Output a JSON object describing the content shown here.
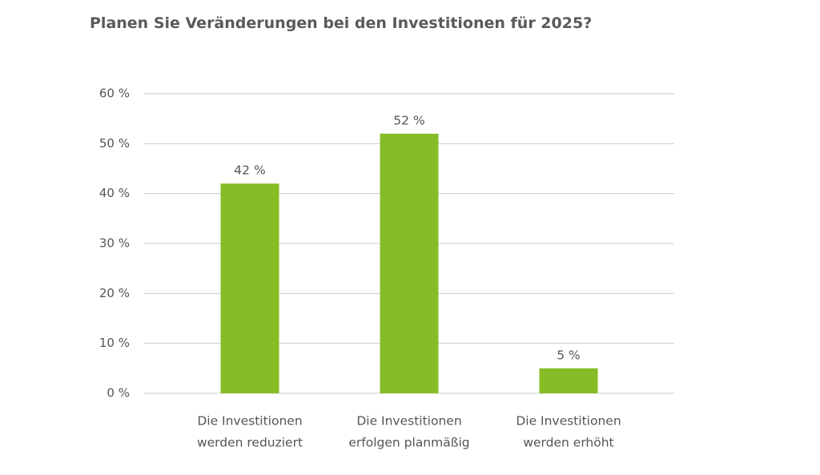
{
  "chart_data": {
    "type": "bar",
    "title": "Planen Sie Veränderungen bei den Investitionen für 2025?",
    "categories": [
      [
        "Die Investitionen",
        "werden reduziert"
      ],
      [
        "Die Investitionen",
        "erfolgen planmäßig"
      ],
      [
        "Die Investitionen",
        "werden erhöht"
      ]
    ],
    "values": [
      42,
      52,
      5
    ],
    "value_labels": [
      "42 %",
      "52 %",
      "5 %"
    ],
    "color": "#86bc25",
    "ylim": [
      0,
      60
    ],
    "yticks": [
      {
        "value": 0,
        "label": "0 %"
      },
      {
        "value": 10,
        "label": "10 %"
      },
      {
        "value": 20,
        "label": "20 %"
      },
      {
        "value": 30,
        "label": "30 %"
      },
      {
        "value": 40,
        "label": "40 %"
      },
      {
        "value": 50,
        "label": "50 %"
      },
      {
        "value": 60,
        "label": "60 %"
      }
    ],
    "grid": true
  }
}
